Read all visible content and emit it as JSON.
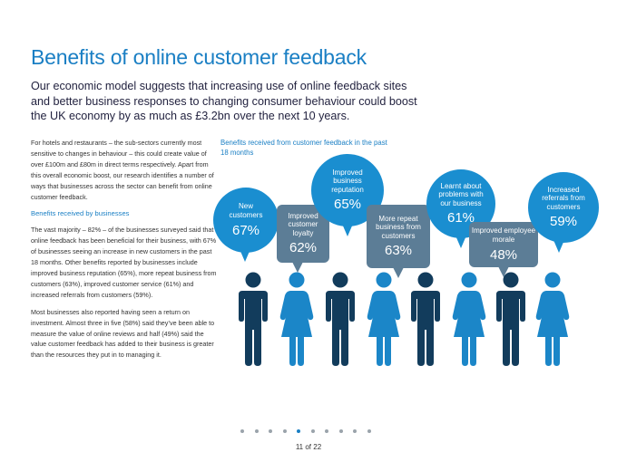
{
  "page": {
    "title": "Benefits of online customer feedback",
    "lead": "Our economic model suggests that increasing use of online feedback sites and better business responses to changing consumer behaviour could boost the UK economy by as much as £3.2bn over the next 10 years.",
    "para1": "For hotels and restaurants – the sub-sectors currently most sensitive to changes in behaviour – this could create value of over £100m and £80m in direct terms respectively. Apart from this overall economic boost, our research identifies a number of ways that businesses across the sector can benefit from online customer feedback.",
    "subheading": "Benefits received by businesses",
    "para2": "The vast majority – 82% – of the businesses surveyed said that online feedback has been beneficial for their business, with 67% of businesses seeing an increase in new customers in the past 18 months. Other benefits reported by businesses include improved business reputation (65%), more repeat business from customers (63%), improved customer service (61%) and increased referrals from customers (59%).",
    "para3": "Most businesses also reported having seen a return on investment. Almost three in five (58%) said they’ve been able to measure the value of online reviews and half (49%) said the value customer feedback has added to their business is greater than the resources they put in to managing it.",
    "chart_title": "Benefits received from customer feedback in the past 18 months",
    "page_number": "11 of 22"
  },
  "bubbles": [
    {
      "label": "New customers",
      "value": "67%",
      "color": "#1a8ed0"
    },
    {
      "label": "Improved customer loyalty",
      "value": "62%",
      "color": "#5c7d96"
    },
    {
      "label": "Improved business reputation",
      "value": "65%",
      "color": "#1a8ed0"
    },
    {
      "label": "More repeat business from customers",
      "value": "63%",
      "color": "#5c7d96"
    },
    {
      "label": "Learnt about problems with our business",
      "value": "61%",
      "color": "#1a8ed0"
    },
    {
      "label": "Improved employee morale",
      "value": "48%",
      "color": "#5c7d96"
    },
    {
      "label": "Increased referrals from customers",
      "value": "59%",
      "color": "#1a8ed0"
    }
  ],
  "colors": {
    "accent": "#1a7fc4",
    "man": "#123c5c",
    "woman": "#1b86c8",
    "grey_bubble": "#5c7d96"
  },
  "pagination": {
    "total": 10,
    "active_index": 4
  }
}
